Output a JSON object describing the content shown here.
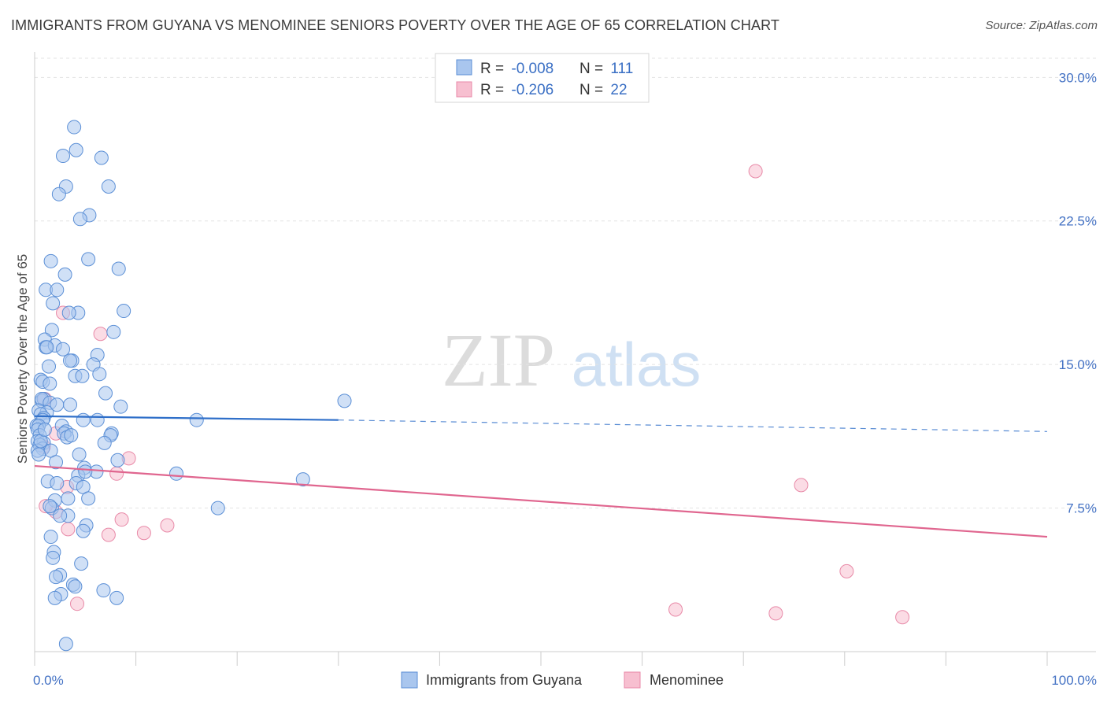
{
  "title": "IMMIGRANTS FROM GUYANA VS MENOMINEE SENIORS POVERTY OVER THE AGE OF 65 CORRELATION CHART",
  "source": "Source: ZipAtlas.com",
  "watermark": {
    "zip": "ZIP",
    "atlas": "atlas"
  },
  "colors": {
    "blue_fill": "#a9c6ee",
    "blue_stroke": "#5b8fd6",
    "blue_line": "#2f6fc9",
    "pink_fill": "#f7bfd0",
    "pink_stroke": "#e88aa8",
    "pink_line": "#e0668f",
    "axis_text": "#4472c4"
  },
  "legend": {
    "rows": [
      {
        "r_label": "R = ",
        "r_value": "-0.008",
        "n_label": "N = ",
        "n_value": "111"
      },
      {
        "r_label": "R = ",
        "r_value": "-0.206",
        "n_label": "N = ",
        "n_value": "22"
      }
    ]
  },
  "chart_data": {
    "type": "scatter",
    "xlabel": "",
    "ylabel": "Seniors Poverty Over the Age of 65",
    "xlim": [
      0,
      100
    ],
    "ylim": [
      0,
      31
    ],
    "y_ticks": [
      {
        "value": 7.5,
        "label": "7.5%"
      },
      {
        "value": 15.0,
        "label": "15.0%"
      },
      {
        "value": 22.5,
        "label": "22.5%"
      },
      {
        "value": 30.0,
        "label": "30.0%"
      }
    ],
    "x_tick_labels": {
      "min": "0.0%",
      "max": "100.0%"
    },
    "x_minor_ticks": [
      0,
      10,
      20,
      30,
      40,
      50,
      60,
      70,
      80,
      90,
      100
    ],
    "series": [
      {
        "name": "Immigrants from Guyana",
        "color": "blue",
        "trend": {
          "x0": 0,
          "y0": 12.3,
          "x1": 30,
          "y1": 12.1,
          "dash_to_x": 100,
          "dash_to_y": 11.5
        },
        "points": [
          [
            3.9,
            27.4
          ],
          [
            4.1,
            26.2
          ],
          [
            2.8,
            25.9
          ],
          [
            6.6,
            25.8
          ],
          [
            3.1,
            24.3
          ],
          [
            7.3,
            24.3
          ],
          [
            2.4,
            23.9
          ],
          [
            5.4,
            22.8
          ],
          [
            4.5,
            22.6
          ],
          [
            1.6,
            20.4
          ],
          [
            5.3,
            20.5
          ],
          [
            8.3,
            20.0
          ],
          [
            3.0,
            19.7
          ],
          [
            1.1,
            18.9
          ],
          [
            2.2,
            18.9
          ],
          [
            1.8,
            18.2
          ],
          [
            4.3,
            17.7
          ],
          [
            8.8,
            17.8
          ],
          [
            3.4,
            17.7
          ],
          [
            1.7,
            16.8
          ],
          [
            7.8,
            16.7
          ],
          [
            1.0,
            16.3
          ],
          [
            1.1,
            15.9
          ],
          [
            2.0,
            16.0
          ],
          [
            1.2,
            15.9
          ],
          [
            6.2,
            15.5
          ],
          [
            3.7,
            15.2
          ],
          [
            3.5,
            15.2
          ],
          [
            5.8,
            15.0
          ],
          [
            1.4,
            14.9
          ],
          [
            4.0,
            14.4
          ],
          [
            4.7,
            14.4
          ],
          [
            6.4,
            14.5
          ],
          [
            0.6,
            14.2
          ],
          [
            0.8,
            14.1
          ],
          [
            1.5,
            14.0
          ],
          [
            0.7,
            13.1
          ],
          [
            0.9,
            13.2
          ],
          [
            0.7,
            13.2
          ],
          [
            1.5,
            13.0
          ],
          [
            3.5,
            12.9
          ],
          [
            8.5,
            12.8
          ],
          [
            0.4,
            12.6
          ],
          [
            1.2,
            12.5
          ],
          [
            0.6,
            12.4
          ],
          [
            0.9,
            12.2
          ],
          [
            0.8,
            12.1
          ],
          [
            6.2,
            12.1
          ],
          [
            4.8,
            12.1
          ],
          [
            16.0,
            12.1
          ],
          [
            2.7,
            11.8
          ],
          [
            0.2,
            11.8
          ],
          [
            0.4,
            11.8
          ],
          [
            0.3,
            11.6
          ],
          [
            3.1,
            11.5
          ],
          [
            2.9,
            11.4
          ],
          [
            7.6,
            11.4
          ],
          [
            7.5,
            11.3
          ],
          [
            0.5,
            11.3
          ],
          [
            3.2,
            11.2
          ],
          [
            0.3,
            11.0
          ],
          [
            0.9,
            10.9
          ],
          [
            0.5,
            10.8
          ],
          [
            0.8,
            10.6
          ],
          [
            0.3,
            10.5
          ],
          [
            1.6,
            10.5
          ],
          [
            4.4,
            10.3
          ],
          [
            8.2,
            10.0
          ],
          [
            2.1,
            9.9
          ],
          [
            4.9,
            9.6
          ],
          [
            6.1,
            9.4
          ],
          [
            4.3,
            9.2
          ],
          [
            14.0,
            9.3
          ],
          [
            26.5,
            9.0
          ],
          [
            1.3,
            8.9
          ],
          [
            4.1,
            8.8
          ],
          [
            2.2,
            8.8
          ],
          [
            4.8,
            8.6
          ],
          [
            3.3,
            8.0
          ],
          [
            2.0,
            7.9
          ],
          [
            5.3,
            8.0
          ],
          [
            18.1,
            7.5
          ],
          [
            1.7,
            7.5
          ],
          [
            1.5,
            7.6
          ],
          [
            3.3,
            7.1
          ],
          [
            2.5,
            7.1
          ],
          [
            5.1,
            6.6
          ],
          [
            4.8,
            6.3
          ],
          [
            1.6,
            6.0
          ],
          [
            1.9,
            5.2
          ],
          [
            1.8,
            4.9
          ],
          [
            4.6,
            4.6
          ],
          [
            2.5,
            4.0
          ],
          [
            2.1,
            3.9
          ],
          [
            3.8,
            3.5
          ],
          [
            4.0,
            3.4
          ],
          [
            6.8,
            3.2
          ],
          [
            2.6,
            3.0
          ],
          [
            2.0,
            2.8
          ],
          [
            8.1,
            2.8
          ],
          [
            3.1,
            0.4
          ],
          [
            30.6,
            13.1
          ],
          [
            0.4,
            10.3
          ],
          [
            0.6,
            11.0
          ],
          [
            1.0,
            11.6
          ],
          [
            2.2,
            12.9
          ],
          [
            3.6,
            11.3
          ],
          [
            5.0,
            9.4
          ],
          [
            7.0,
            13.5
          ],
          [
            2.8,
            15.8
          ],
          [
            6.9,
            10.9
          ]
        ]
      },
      {
        "name": "Menominee",
        "color": "pink",
        "trend": {
          "x0": 0,
          "y0": 9.7,
          "x1": 100,
          "y1": 6.0
        },
        "points": [
          [
            71.2,
            25.1
          ],
          [
            2.8,
            17.7
          ],
          [
            6.5,
            16.6
          ],
          [
            1.0,
            13.2
          ],
          [
            2.1,
            11.4
          ],
          [
            0.9,
            10.7
          ],
          [
            9.3,
            10.1
          ],
          [
            8.1,
            9.3
          ],
          [
            75.7,
            8.7
          ],
          [
            3.2,
            8.6
          ],
          [
            2.1,
            7.3
          ],
          [
            1.1,
            7.6
          ],
          [
            8.6,
            6.9
          ],
          [
            13.1,
            6.6
          ],
          [
            3.3,
            6.4
          ],
          [
            10.8,
            6.2
          ],
          [
            7.3,
            6.1
          ],
          [
            80.2,
            4.2
          ],
          [
            4.2,
            2.5
          ],
          [
            63.3,
            2.2
          ],
          [
            73.2,
            2.0
          ],
          [
            85.7,
            1.8
          ]
        ]
      }
    ]
  },
  "bottom_legend": [
    {
      "label": "Immigrants from Guyana",
      "color": "blue"
    },
    {
      "label": "Menominee",
      "color": "pink"
    }
  ]
}
